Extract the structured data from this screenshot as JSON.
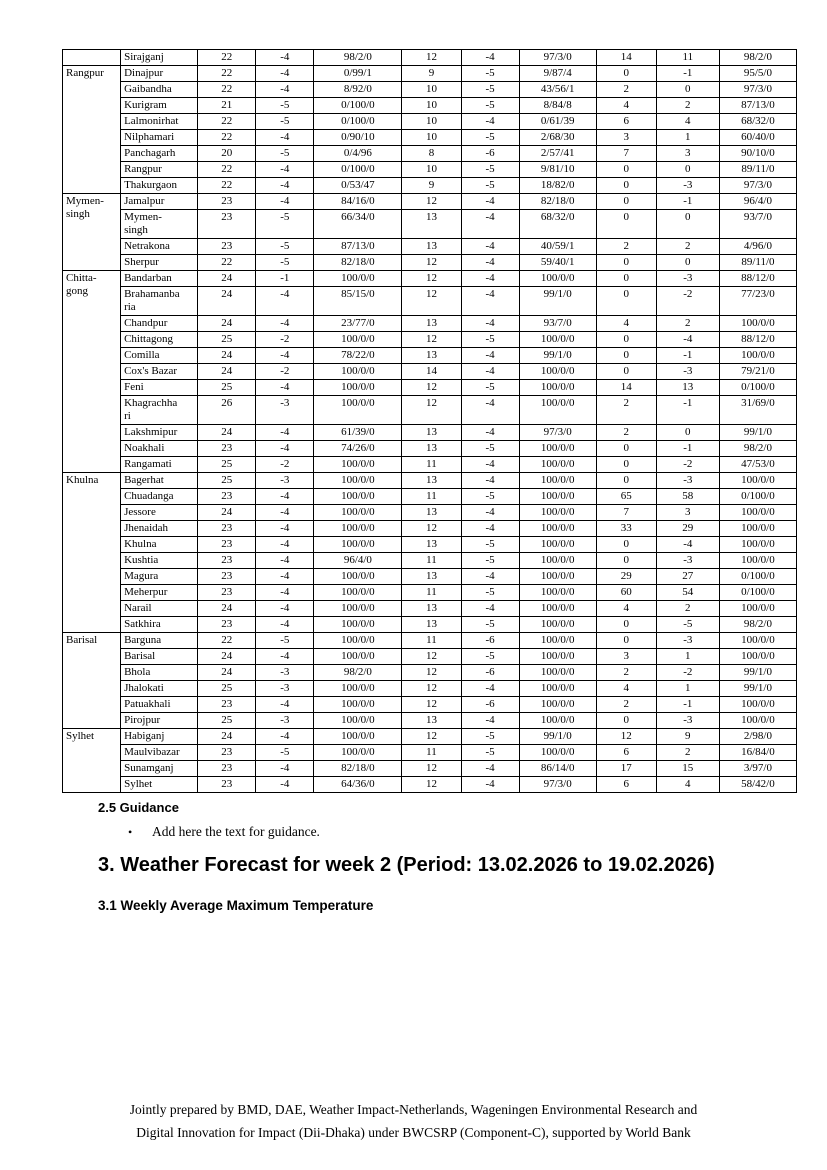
{
  "table": {
    "groups": [
      {
        "division": "",
        "rows": [
          {
            "district": "Sirajganj",
            "values": [
              "22",
              "-4",
              "98/2/0",
              "12",
              "-4",
              "97/3/0",
              "14",
              "11",
              "98/2/0"
            ]
          }
        ]
      },
      {
        "division": "Rangpur",
        "rows": [
          {
            "district": "Dinajpur",
            "values": [
              "22",
              "-4",
              "0/99/1",
              "9",
              "-5",
              "9/87/4",
              "0",
              "-1",
              "95/5/0"
            ]
          },
          {
            "district": "Gaibandha",
            "values": [
              "22",
              "-4",
              "8/92/0",
              "10",
              "-5",
              "43/56/1",
              "2",
              "0",
              "97/3/0"
            ]
          },
          {
            "district": "Kurigram",
            "values": [
              "21",
              "-5",
              "0/100/0",
              "10",
              "-5",
              "8/84/8",
              "4",
              "2",
              "87/13/0"
            ]
          },
          {
            "district": "Lalmonirhat",
            "values": [
              "22",
              "-5",
              "0/100/0",
              "10",
              "-4",
              "0/61/39",
              "6",
              "4",
              "68/32/0"
            ]
          },
          {
            "district": "Nilphamari",
            "values": [
              "22",
              "-4",
              "0/90/10",
              "10",
              "-5",
              "2/68/30",
              "3",
              "1",
              "60/40/0"
            ]
          },
          {
            "district": "Panchagarh",
            "values": [
              "20",
              "-5",
              "0/4/96",
              "8",
              "-6",
              "2/57/41",
              "7",
              "3",
              "90/10/0"
            ]
          },
          {
            "district": "Rangpur",
            "values": [
              "22",
              "-4",
              "0/100/0",
              "10",
              "-5",
              "9/81/10",
              "0",
              "0",
              "89/11/0"
            ]
          },
          {
            "district": "Thakurgaon",
            "values": [
              "22",
              "-4",
              "0/53/47",
              "9",
              "-5",
              "18/82/0",
              "0",
              "-3",
              "97/3/0"
            ]
          }
        ]
      },
      {
        "division": "Mymen-\nsingh",
        "rows": [
          {
            "district": "Jamalpur",
            "values": [
              "23",
              "-4",
              "84/16/0",
              "12",
              "-4",
              "82/18/0",
              "0",
              "-1",
              "96/4/0"
            ]
          },
          {
            "district": "Mymen-\nsingh",
            "values": [
              "23",
              "-5",
              "66/34/0",
              "13",
              "-4",
              "68/32/0",
              "0",
              "0",
              "93/7/0"
            ]
          },
          {
            "district": "Netrakona",
            "values": [
              "23",
              "-5",
              "87/13/0",
              "13",
              "-4",
              "40/59/1",
              "2",
              "2",
              "4/96/0"
            ]
          },
          {
            "district": "Sherpur",
            "values": [
              "22",
              "-5",
              "82/18/0",
              "12",
              "-4",
              "59/40/1",
              "0",
              "0",
              "89/11/0"
            ]
          }
        ]
      },
      {
        "division": "Chitta-\ngong",
        "rows": [
          {
            "district": "Bandarban",
            "values": [
              "24",
              "-1",
              "100/0/0",
              "12",
              "-4",
              "100/0/0",
              "0",
              "-3",
              "88/12/0"
            ]
          },
          {
            "district": "Brahamanba\nria",
            "values": [
              "24",
              "-4",
              "85/15/0",
              "12",
              "-4",
              "99/1/0",
              "0",
              "-2",
              "77/23/0"
            ]
          },
          {
            "district": "Chandpur",
            "values": [
              "24",
              "-4",
              "23/77/0",
              "13",
              "-4",
              "93/7/0",
              "4",
              "2",
              "100/0/0"
            ]
          },
          {
            "district": "Chittagong",
            "values": [
              "25",
              "-2",
              "100/0/0",
              "12",
              "-5",
              "100/0/0",
              "0",
              "-4",
              "88/12/0"
            ]
          },
          {
            "district": "Comilla",
            "values": [
              "24",
              "-4",
              "78/22/0",
              "13",
              "-4",
              "99/1/0",
              "0",
              "-1",
              "100/0/0"
            ]
          },
          {
            "district": "Cox's Bazar",
            "values": [
              "24",
              "-2",
              "100/0/0",
              "14",
              "-4",
              "100/0/0",
              "0",
              "-3",
              "79/21/0"
            ]
          },
          {
            "district": "Feni",
            "values": [
              "25",
              "-4",
              "100/0/0",
              "12",
              "-5",
              "100/0/0",
              "14",
              "13",
              "0/100/0"
            ]
          },
          {
            "district": "Khagrachha\nri",
            "values": [
              "26",
              "-3",
              "100/0/0",
              "12",
              "-4",
              "100/0/0",
              "2",
              "-1",
              "31/69/0"
            ]
          },
          {
            "district": "Lakshmipur",
            "values": [
              "24",
              "-4",
              "61/39/0",
              "13",
              "-4",
              "97/3/0",
              "2",
              "0",
              "99/1/0"
            ]
          },
          {
            "district": "Noakhali",
            "values": [
              "23",
              "-4",
              "74/26/0",
              "13",
              "-5",
              "100/0/0",
              "0",
              "-1",
              "98/2/0"
            ]
          },
          {
            "district": "Rangamati",
            "values": [
              "25",
              "-2",
              "100/0/0",
              "11",
              "-4",
              "100/0/0",
              "0",
              "-2",
              "47/53/0"
            ]
          }
        ]
      },
      {
        "division": "Khulna",
        "rows": [
          {
            "district": "Bagerhat",
            "values": [
              "25",
              "-3",
              "100/0/0",
              "13",
              "-4",
              "100/0/0",
              "0",
              "-3",
              "100/0/0"
            ]
          },
          {
            "district": "Chuadanga",
            "values": [
              "23",
              "-4",
              "100/0/0",
              "11",
              "-5",
              "100/0/0",
              "65",
              "58",
              "0/100/0"
            ]
          },
          {
            "district": "Jessore",
            "values": [
              "24",
              "-4",
              "100/0/0",
              "13",
              "-4",
              "100/0/0",
              "7",
              "3",
              "100/0/0"
            ]
          },
          {
            "district": "Jhenaidah",
            "values": [
              "23",
              "-4",
              "100/0/0",
              "12",
              "-4",
              "100/0/0",
              "33",
              "29",
              "100/0/0"
            ]
          },
          {
            "district": "Khulna",
            "values": [
              "23",
              "-4",
              "100/0/0",
              "13",
              "-5",
              "100/0/0",
              "0",
              "-4",
              "100/0/0"
            ]
          },
          {
            "district": "Kushtia",
            "values": [
              "23",
              "-4",
              "96/4/0",
              "11",
              "-5",
              "100/0/0",
              "0",
              "-3",
              "100/0/0"
            ]
          },
          {
            "district": "Magura",
            "values": [
              "23",
              "-4",
              "100/0/0",
              "13",
              "-4",
              "100/0/0",
              "29",
              "27",
              "0/100/0"
            ]
          },
          {
            "district": "Meherpur",
            "values": [
              "23",
              "-4",
              "100/0/0",
              "11",
              "-5",
              "100/0/0",
              "60",
              "54",
              "0/100/0"
            ]
          },
          {
            "district": "Narail",
            "values": [
              "24",
              "-4",
              "100/0/0",
              "13",
              "-4",
              "100/0/0",
              "4",
              "2",
              "100/0/0"
            ]
          },
          {
            "district": "Satkhira",
            "values": [
              "23",
              "-4",
              "100/0/0",
              "13",
              "-5",
              "100/0/0",
              "0",
              "-5",
              "98/2/0"
            ]
          }
        ]
      },
      {
        "division": "Barisal",
        "rows": [
          {
            "district": "Barguna",
            "values": [
              "22",
              "-5",
              "100/0/0",
              "11",
              "-6",
              "100/0/0",
              "0",
              "-3",
              "100/0/0"
            ]
          },
          {
            "district": "Barisal",
            "values": [
              "24",
              "-4",
              "100/0/0",
              "12",
              "-5",
              "100/0/0",
              "3",
              "1",
              "100/0/0"
            ]
          },
          {
            "district": "Bhola",
            "values": [
              "24",
              "-3",
              "98/2/0",
              "12",
              "-6",
              "100/0/0",
              "2",
              "-2",
              "99/1/0"
            ]
          },
          {
            "district": "Jhalokati",
            "values": [
              "25",
              "-3",
              "100/0/0",
              "12",
              "-4",
              "100/0/0",
              "4",
              "1",
              "99/1/0"
            ]
          },
          {
            "district": "Patuakhali",
            "values": [
              "23",
              "-4",
              "100/0/0",
              "12",
              "-6",
              "100/0/0",
              "2",
              "-1",
              "100/0/0"
            ]
          },
          {
            "district": "Pirojpur",
            "values": [
              "25",
              "-3",
              "100/0/0",
              "13",
              "-4",
              "100/0/0",
              "0",
              "-3",
              "100/0/0"
            ]
          }
        ]
      },
      {
        "division": "Sylhet",
        "rows": [
          {
            "district": "Habiganj",
            "values": [
              "24",
              "-4",
              "100/0/0",
              "12",
              "-5",
              "99/1/0",
              "12",
              "9",
              "2/98/0"
            ]
          },
          {
            "district": "Maulvibazar",
            "values": [
              "23",
              "-5",
              "100/0/0",
              "11",
              "-5",
              "100/0/0",
              "6",
              "2",
              "16/84/0"
            ]
          },
          {
            "district": "Sunamganj",
            "values": [
              "23",
              "-4",
              "82/18/0",
              "12",
              "-4",
              "86/14/0",
              "17",
              "15",
              "3/97/0"
            ]
          },
          {
            "district": "Sylhet",
            "values": [
              "23",
              "-4",
              "64/36/0",
              "12",
              "-4",
              "97/3/0",
              "6",
              "4",
              "58/42/0"
            ]
          }
        ]
      }
    ]
  },
  "guidance": {
    "heading": "2.5 Guidance",
    "bullet_glyph": "•",
    "bullet_text": "Add here the text for guidance."
  },
  "section3": {
    "heading": "3. Weather Forecast for week 2 (Period: 13.02.2026 to 19.02.2026)",
    "subheading": "3.1 Weekly Average Maximum Temperature"
  },
  "footer": {
    "line1": "Jointly prepared by BMD, DAE, Weather Impact-Netherlands, Wageningen Environmental Research and",
    "line2": "Digital Innovation for Impact (Dii-Dhaka) under BWCSRP (Component-C), supported by World Bank"
  }
}
